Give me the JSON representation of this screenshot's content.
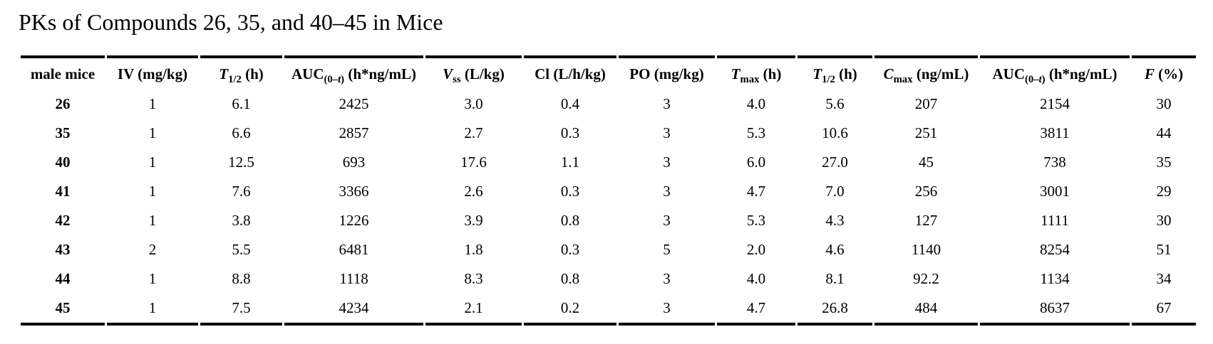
{
  "page": {
    "title": "PKs of Compounds 26, 35, and 40–45 in Mice"
  },
  "colors": {
    "text": "#000000",
    "rule": "#000000",
    "background": "#ffffff"
  },
  "table": {
    "columns": [
      {
        "name": "male-mice",
        "text": "male mice",
        "parts": [
          {
            "t": "male mice",
            "style": "b"
          }
        ]
      },
      {
        "name": "iv-dose",
        "text": "IV (mg/kg)",
        "parts": [
          {
            "t": "IV (mg/kg)",
            "style": "b"
          }
        ]
      },
      {
        "name": "iv-t-half",
        "text": "T1/2 (h)",
        "parts": [
          {
            "t": "T",
            "style": "bi"
          },
          {
            "t": "1/2",
            "style": "sub"
          },
          {
            "t": " (h)",
            "style": "b"
          }
        ]
      },
      {
        "name": "iv-auc",
        "text": "AUC(0–t) (h*ng/mL)",
        "parts": [
          {
            "t": "AUC",
            "style": "b"
          },
          {
            "t": "(0–",
            "style": "sub"
          },
          {
            "t": "t",
            "style": "subi"
          },
          {
            "t": ")",
            "style": "sub"
          },
          {
            "t": " (h*ng/mL)",
            "style": "b"
          }
        ]
      },
      {
        "name": "vss",
        "text": "Vss (L/kg)",
        "parts": [
          {
            "t": "V",
            "style": "bi"
          },
          {
            "t": "ss",
            "style": "sub"
          },
          {
            "t": " (L/kg)",
            "style": "b"
          }
        ]
      },
      {
        "name": "cl",
        "text": "Cl (L/h/kg)",
        "parts": [
          {
            "t": "Cl (L/h/kg)",
            "style": "b"
          }
        ]
      },
      {
        "name": "po-dose",
        "text": "PO (mg/kg)",
        "parts": [
          {
            "t": "PO (mg/kg)",
            "style": "b"
          }
        ]
      },
      {
        "name": "tmax",
        "text": "Tmax (h)",
        "parts": [
          {
            "t": "T",
            "style": "bi"
          },
          {
            "t": "max",
            "style": "sub"
          },
          {
            "t": " (h)",
            "style": "b"
          }
        ]
      },
      {
        "name": "po-t-half",
        "text": "T1/2 (h)",
        "parts": [
          {
            "t": "T",
            "style": "bi"
          },
          {
            "t": "1/2",
            "style": "sub"
          },
          {
            "t": " (h)",
            "style": "b"
          }
        ]
      },
      {
        "name": "cmax",
        "text": "Cmax (ng/mL)",
        "parts": [
          {
            "t": "C",
            "style": "bi"
          },
          {
            "t": "max",
            "style": "sub"
          },
          {
            "t": " (ng/mL)",
            "style": "b"
          }
        ]
      },
      {
        "name": "po-auc",
        "text": "AUC(0–t) (h*ng/mL)",
        "parts": [
          {
            "t": "AUC",
            "style": "b"
          },
          {
            "t": "(0–",
            "style": "sub"
          },
          {
            "t": "t",
            "style": "subi"
          },
          {
            "t": ")",
            "style": "sub"
          },
          {
            "t": " (h*ng/mL)",
            "style": "b"
          }
        ]
      },
      {
        "name": "f-percent",
        "text": "F (%)",
        "parts": [
          {
            "t": "F",
            "style": "bi"
          },
          {
            "t": " (%)",
            "style": "b"
          }
        ]
      }
    ],
    "rows": [
      {
        "compound": "26",
        "values": [
          "1",
          "6.1",
          "2425",
          "3.0",
          "0.4",
          "3",
          "4.0",
          "5.6",
          "207",
          "2154",
          "30"
        ]
      },
      {
        "compound": "35",
        "values": [
          "1",
          "6.6",
          "2857",
          "2.7",
          "0.3",
          "3",
          "5.3",
          "10.6",
          "251",
          "3811",
          "44"
        ]
      },
      {
        "compound": "40",
        "values": [
          "1",
          "12.5",
          "693",
          "17.6",
          "1.1",
          "3",
          "6.0",
          "27.0",
          "45",
          "738",
          "35"
        ]
      },
      {
        "compound": "41",
        "values": [
          "1",
          "7.6",
          "3366",
          "2.6",
          "0.3",
          "3",
          "4.7",
          "7.0",
          "256",
          "3001",
          "29"
        ]
      },
      {
        "compound": "42",
        "values": [
          "1",
          "3.8",
          "1226",
          "3.9",
          "0.8",
          "3",
          "5.3",
          "4.3",
          "127",
          "1111",
          "30"
        ]
      },
      {
        "compound": "43",
        "values": [
          "2",
          "5.5",
          "6481",
          "1.8",
          "0.3",
          "5",
          "2.0",
          "4.6",
          "1140",
          "8254",
          "51"
        ]
      },
      {
        "compound": "44",
        "values": [
          "1",
          "8.8",
          "1118",
          "8.3",
          "0.8",
          "3",
          "4.0",
          "8.1",
          "92.2",
          "1134",
          "34"
        ]
      },
      {
        "compound": "45",
        "values": [
          "1",
          "7.5",
          "4234",
          "2.1",
          "0.2",
          "3",
          "4.7",
          "26.8",
          "484",
          "8637",
          "67"
        ]
      }
    ]
  }
}
